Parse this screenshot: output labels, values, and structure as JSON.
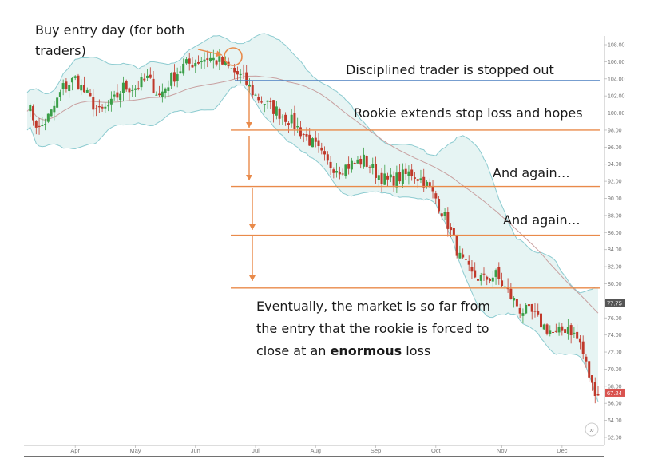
{
  "chart_data": {
    "type": "candlestick",
    "x_ticks": [
      "Apr",
      "May",
      "Jun",
      "Jul",
      "Aug",
      "Sep",
      "Oct",
      "Nov",
      "Dec"
    ],
    "y_ticks": [
      108,
      106,
      104,
      102,
      100,
      98,
      96,
      94,
      92,
      90,
      88,
      86,
      84,
      82,
      80,
      78,
      76,
      74,
      72,
      70,
      68,
      66,
      64,
      62
    ],
    "y_tick_labels": [
      "108.00",
      "106.00",
      "104.00",
      "102.00",
      "100.00",
      "98.00",
      "96.00",
      "94.00",
      "92.00",
      "90.00",
      "88.00",
      "86.00",
      "84.00",
      "82.00",
      "80.00",
      "78.00",
      "76.00",
      "74.00",
      "72.00",
      "70.00",
      "68.00",
      "66.00",
      "64.00",
      "62.00"
    ],
    "ylim": [
      61.5,
      108.5
    ],
    "price_badges": [
      {
        "label": "77.75",
        "value": 77.75,
        "color": "#555555"
      },
      {
        "label": "67.24",
        "value": 67.24,
        "color": "#d9534f"
      }
    ],
    "reference_price": 77.75,
    "current_price": 67.24,
    "scroll_button_label": "»",
    "annotations": {
      "buy_entry_line1": "Buy entry day (for both",
      "buy_entry_line2": "traders)",
      "disciplined": "Disciplined trader is stopped out",
      "rookie": "Rookie extends stop loss and hopes",
      "again1": "And again…",
      "again2": "And again…",
      "eventually_line1": "Eventually, the market is so far from",
      "eventually_line2": "the entry that the rookie is forced to",
      "eventually_line3_pre": "close at an ",
      "eventually_line3_bold": "enormous",
      "eventually_line3_post": " loss"
    },
    "stop_lines": [
      {
        "name": "disciplined-stop",
        "value": 103.8,
        "color": "#4a7fc1"
      },
      {
        "name": "rookie-stop-1",
        "value": 98.0,
        "color": "#e98a4a"
      },
      {
        "name": "rookie-stop-2",
        "value": 91.4,
        "color": "#e98a4a"
      },
      {
        "name": "rookie-stop-3",
        "value": 85.7,
        "color": "#e98a4a"
      },
      {
        "name": "rookie-stop-4",
        "value": 79.5,
        "color": "#e98a4a"
      }
    ],
    "price_path": [
      [
        0,
        101
      ],
      [
        4,
        98
      ],
      [
        8,
        100
      ],
      [
        12,
        103
      ],
      [
        16,
        104
      ],
      [
        20,
        102
      ],
      [
        24,
        100
      ],
      [
        28,
        101
      ],
      [
        32,
        103
      ],
      [
        36,
        103
      ],
      [
        40,
        104
      ],
      [
        44,
        102
      ],
      [
        48,
        104
      ],
      [
        52,
        105.5
      ],
      [
        56,
        106
      ],
      [
        60,
        106.5
      ],
      [
        64,
        106
      ],
      [
        68,
        105
      ],
      [
        72,
        104
      ],
      [
        76,
        102
      ],
      [
        80,
        101
      ],
      [
        84,
        100
      ],
      [
        88,
        99
      ],
      [
        92,
        97.5
      ],
      [
        96,
        96
      ],
      [
        100,
        94
      ],
      [
        104,
        93.5
      ],
      [
        108,
        94
      ],
      [
        112,
        94.5
      ],
      [
        116,
        93
      ],
      [
        120,
        92
      ],
      [
        124,
        92.5
      ],
      [
        128,
        93
      ],
      [
        132,
        92
      ],
      [
        136,
        90
      ],
      [
        140,
        87
      ],
      [
        144,
        83
      ],
      [
        148,
        81
      ],
      [
        152,
        80.5
      ],
      [
        156,
        81
      ],
      [
        160,
        79
      ],
      [
        164,
        77
      ],
      [
        168,
        76.5
      ],
      [
        172,
        75
      ],
      [
        176,
        74
      ],
      [
        180,
        75
      ],
      [
        184,
        73
      ],
      [
        188,
        68
      ],
      [
        190,
        67.24
      ]
    ],
    "x_month_positions": [
      16,
      36,
      56,
      76,
      96,
      116,
      136,
      158,
      178
    ],
    "x_max": 190,
    "colors": {
      "up": "#3a9e47",
      "down": "#c0392b",
      "band_fill": "#e6f4f3",
      "band_line": "#8ccbd0",
      "ma_line": "#c8a0a0",
      "arrow": "#e98a4a"
    }
  }
}
